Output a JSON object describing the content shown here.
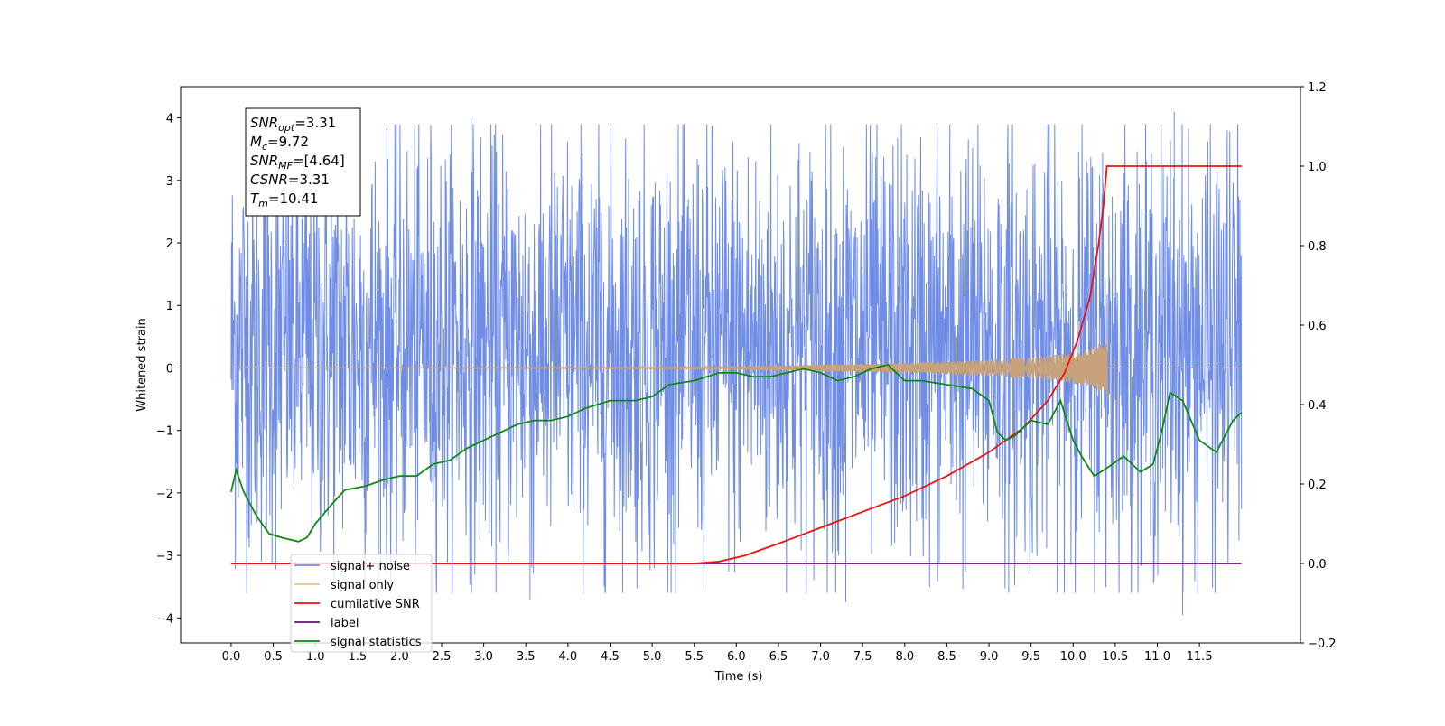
{
  "chart_data": {
    "type": "line",
    "xlabel": "Time (s)",
    "ylabel": "Whitened strain",
    "xlim": [
      -0.6,
      12.7
    ],
    "ylim": [
      -4.4,
      4.5
    ],
    "y2lim": [
      -0.2,
      1.2
    ],
    "x_ticks": [
      "0.0",
      "0.5",
      "1.0",
      "1.5",
      "2.0",
      "2.5",
      "3.0",
      "3.5",
      "4.0",
      "4.5",
      "5.0",
      "5.5",
      "6.0",
      "6.5",
      "7.0",
      "7.5",
      "8.0",
      "8.5",
      "9.0",
      "9.5",
      "10.0",
      "10.5",
      "11.0",
      "11.5"
    ],
    "y_ticks": [
      4,
      3,
      2,
      1,
      0,
      -1,
      -2,
      -3,
      -4
    ],
    "y_tick_labels": [
      "4",
      "3",
      "2",
      "1",
      "0",
      "−1",
      "−2",
      "−3",
      "−4"
    ],
    "y2_ticks": [
      1.2,
      1.0,
      0.8,
      0.6,
      0.4,
      0.2,
      0.0,
      -0.2
    ],
    "y2_tick_labels": [
      "1.2",
      "1.0",
      "0.8",
      "0.6",
      "0.4",
      "0.2",
      "0.0",
      "−0.2"
    ],
    "grid": false,
    "annotation": {
      "lines": [
        {
          "sym": "SNR",
          "sub": "opt",
          "val": "=3.31"
        },
        {
          "sym": "M",
          "sub": "c",
          "val": "=9.72"
        },
        {
          "sym": "SNR",
          "sub": "MF",
          "val": "=[4.64]"
        },
        {
          "sym": "CSNR",
          "sub": "",
          "val": "=3.31"
        },
        {
          "sym": "T",
          "sub": "m",
          "val": "=10.41"
        }
      ]
    },
    "legend": {
      "placement": "lower-left",
      "entries": [
        {
          "label": "signal+ noise",
          "color": "#6f8de6"
        },
        {
          "label": "signal only",
          "color": "#f5c27a"
        },
        {
          "label": "cumilative SNR",
          "color": "#ee1111"
        },
        {
          "label": "label",
          "color": "#6a0f75"
        },
        {
          "label": "signal statistics",
          "color": "#118811"
        }
      ]
    },
    "series": [
      {
        "name": "signal+ noise",
        "axis": "left",
        "color": "#6f8de6",
        "x_range": [
          0,
          12.0
        ],
        "dense_noise": true,
        "typical_range": [
          -2.8,
          3.5
        ],
        "extremes": [
          [
            2.85,
            4.0
          ],
          [
            3.55,
            -3.7
          ],
          [
            7.3,
            -3.75
          ],
          [
            11.3,
            -3.95
          ],
          [
            11.2,
            4.1
          ],
          [
            10.35,
            3.45
          ]
        ]
      },
      {
        "name": "signal only",
        "axis": "left",
        "color": "#c8a27a",
        "x_range": [
          0,
          10.41
        ],
        "envelope": [
          [
            0,
            0.0
          ],
          [
            6.0,
            0.02
          ],
          [
            7.0,
            0.05
          ],
          [
            8.0,
            0.08
          ],
          [
            9.0,
            0.13
          ],
          [
            9.5,
            0.17
          ],
          [
            9.9,
            0.23
          ],
          [
            10.2,
            0.3
          ],
          [
            10.35,
            0.42
          ],
          [
            10.41,
            0.52
          ]
        ]
      },
      {
        "name": "cumilative SNR",
        "axis": "right",
        "color": "#ee1111",
        "points": [
          [
            0,
            0.0
          ],
          [
            5.5,
            0.0
          ],
          [
            5.8,
            0.005
          ],
          [
            6.1,
            0.02
          ],
          [
            6.5,
            0.05
          ],
          [
            7.0,
            0.09
          ],
          [
            7.5,
            0.13
          ],
          [
            8.0,
            0.17
          ],
          [
            8.5,
            0.22
          ],
          [
            9.0,
            0.28
          ],
          [
            9.4,
            0.34
          ],
          [
            9.7,
            0.41
          ],
          [
            9.9,
            0.48
          ],
          [
            10.05,
            0.56
          ],
          [
            10.2,
            0.67
          ],
          [
            10.3,
            0.8
          ],
          [
            10.36,
            0.9
          ],
          [
            10.4,
            1.0
          ],
          [
            12.0,
            1.0
          ]
        ]
      },
      {
        "name": "label",
        "axis": "right",
        "color": "#6a0f75",
        "points": [
          [
            0,
            0.0
          ],
          [
            12.0,
            0.0
          ]
        ]
      },
      {
        "name": "signal statistics",
        "axis": "right",
        "color": "#118811",
        "points": [
          [
            0,
            0.18
          ],
          [
            0.06,
            0.235
          ],
          [
            0.15,
            0.18
          ],
          [
            0.3,
            0.12
          ],
          [
            0.45,
            0.075
          ],
          [
            0.6,
            0.065
          ],
          [
            0.8,
            0.055
          ],
          [
            0.9,
            0.065
          ],
          [
            1.0,
            0.1
          ],
          [
            1.2,
            0.15
          ],
          [
            1.35,
            0.185
          ],
          [
            1.6,
            0.195
          ],
          [
            1.8,
            0.21
          ],
          [
            2.0,
            0.22
          ],
          [
            2.2,
            0.22
          ],
          [
            2.4,
            0.25
          ],
          [
            2.6,
            0.26
          ],
          [
            2.8,
            0.29
          ],
          [
            3.0,
            0.31
          ],
          [
            3.2,
            0.33
          ],
          [
            3.4,
            0.35
          ],
          [
            3.6,
            0.36
          ],
          [
            3.8,
            0.36
          ],
          [
            4.0,
            0.37
          ],
          [
            4.2,
            0.39
          ],
          [
            4.5,
            0.41
          ],
          [
            4.8,
            0.41
          ],
          [
            5.0,
            0.42
          ],
          [
            5.2,
            0.45
          ],
          [
            5.5,
            0.46
          ],
          [
            5.8,
            0.48
          ],
          [
            6.0,
            0.48
          ],
          [
            6.2,
            0.47
          ],
          [
            6.4,
            0.47
          ],
          [
            6.6,
            0.48
          ],
          [
            6.8,
            0.49
          ],
          [
            7.0,
            0.48
          ],
          [
            7.2,
            0.46
          ],
          [
            7.4,
            0.47
          ],
          [
            7.6,
            0.49
          ],
          [
            7.8,
            0.5
          ],
          [
            7.9,
            0.48
          ],
          [
            8.0,
            0.46
          ],
          [
            8.2,
            0.46
          ],
          [
            8.5,
            0.45
          ],
          [
            8.8,
            0.44
          ],
          [
            9.0,
            0.41
          ],
          [
            9.1,
            0.33
          ],
          [
            9.2,
            0.31
          ],
          [
            9.3,
            0.32
          ],
          [
            9.5,
            0.36
          ],
          [
            9.7,
            0.35
          ],
          [
            9.85,
            0.41
          ],
          [
            10.0,
            0.31
          ],
          [
            10.1,
            0.27
          ],
          [
            10.25,
            0.22
          ],
          [
            10.4,
            0.24
          ],
          [
            10.6,
            0.27
          ],
          [
            10.8,
            0.23
          ],
          [
            10.95,
            0.25
          ],
          [
            11.05,
            0.33
          ],
          [
            11.15,
            0.43
          ],
          [
            11.3,
            0.41
          ],
          [
            11.5,
            0.31
          ],
          [
            11.7,
            0.28
          ],
          [
            11.9,
            0.36
          ],
          [
            12.0,
            0.38
          ]
        ]
      }
    ]
  }
}
